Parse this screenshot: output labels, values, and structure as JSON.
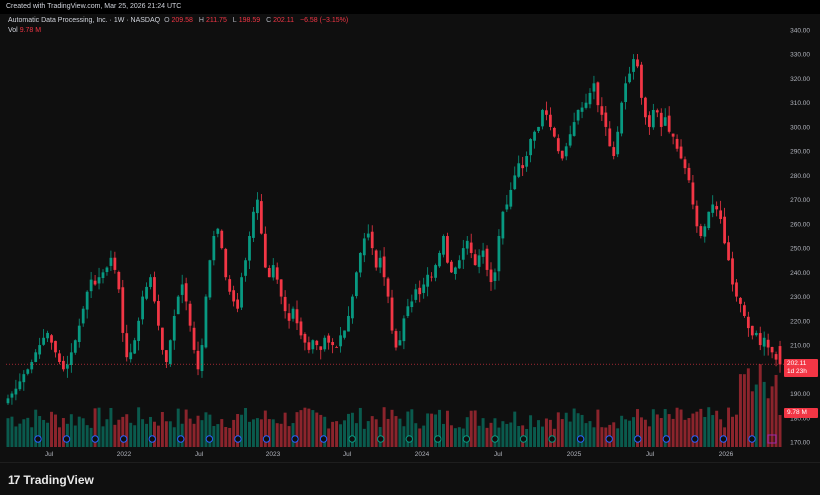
{
  "header": {
    "created": "Created with TradingView.com, Mar 25, 2026 21:24 UTC"
  },
  "legend": {
    "symbol": "Automatic Data Processing, Inc. · 1W · NASDAQ",
    "o_label": "O",
    "o_value": "209.58",
    "h_label": "H",
    "h_value": "211.75",
    "l_label": "L",
    "l_value": "198.59",
    "c_label": "C",
    "c_value": "202.11",
    "change": "−6.58 (−3.15%)",
    "vol_label": "Vol",
    "vol_value": "9.78 M"
  },
  "price_badge": {
    "price": "202.11",
    "countdown": "1d 23h"
  },
  "volume_badge": "9.78 M",
  "footer": {
    "brand": "TradingView"
  },
  "colors": {
    "up": "#089981",
    "down": "#f23645",
    "background": "#0f0f0f",
    "event_marker": "#2962ff",
    "earnings_marker": "#9c27b0"
  },
  "chart_data": {
    "type": "candlestick",
    "symbol": "ADP",
    "interval": "1W",
    "ylim": [
      170,
      340
    ],
    "y_ticks": [
      340,
      330,
      320,
      310,
      300,
      290,
      280,
      270,
      260,
      250,
      240,
      230,
      220,
      210,
      200,
      190,
      180,
      170
    ],
    "x_tick_labels": [
      "Jul",
      "2022",
      "Jul",
      "2023",
      "Jul",
      "2024",
      "Jul",
      "2025",
      "Jul",
      "2026"
    ],
    "grid": false,
    "approx_weekly_close": [
      {
        "period": "2021 H1",
        "values": [
          188,
          190,
          192,
          195,
          198,
          200,
          203,
          207,
          210,
          213,
          215,
          211,
          207,
          203,
          200
        ]
      },
      {
        "period": "2021 H2",
        "values": [
          202,
          207,
          212,
          218,
          225,
          232,
          237,
          235,
          238,
          240,
          242,
          246,
          241,
          233
        ]
      },
      {
        "period": "2022",
        "values": [
          215,
          205,
          207,
          212,
          220,
          230,
          234,
          238,
          228,
          218,
          208,
          203,
          212,
          222,
          230,
          235,
          228,
          218,
          208,
          200,
          210,
          230,
          245,
          255,
          258,
          250,
          238,
          232,
          228,
          225,
          238,
          245,
          255,
          265,
          270,
          256,
          242
        ]
      },
      {
        "period": "2023",
        "values": [
          238,
          243,
          237,
          230,
          224,
          220,
          225,
          219,
          214,
          211,
          208,
          212,
          210,
          208,
          213,
          211,
          210,
          209,
          214,
          216,
          222,
          230,
          240,
          248,
          254,
          256,
          250,
          242,
          246,
          238,
          230,
          216,
          209,
          212,
          221,
          226,
          228,
          233,
          231,
          235,
          239
        ]
      },
      {
        "period": "2024",
        "values": [
          238,
          243,
          248,
          255,
          244,
          240,
          242,
          245,
          250,
          253,
          248,
          243,
          247,
          249,
          241,
          236,
          240,
          255,
          265,
          268,
          274,
          280,
          285,
          283,
          288,
          295,
          298,
          300,
          307,
          305,
          300,
          296,
          290,
          287
        ]
      },
      {
        "period": "2025",
        "values": [
          292,
          297,
          302,
          307,
          308,
          310,
          314,
          318,
          309,
          305,
          300,
          292,
          288,
          298,
          310,
          318,
          322,
          328,
          325,
          312,
          304,
          300,
          307,
          306,
          300,
          304,
          298,
          296,
          291,
          287,
          283,
          278,
          268,
          259,
          255,
          259,
          265,
          268,
          266,
          262,
          252,
          245,
          235,
          230,
          227,
          222,
          217,
          214,
          215,
          210
        ]
      },
      {
        "period": "2026",
        "values": [
          213,
          209,
          207,
          204,
          202
        ]
      }
    ],
    "last": {
      "open": 209.58,
      "high": 211.75,
      "low": 198.59,
      "close": 202.11,
      "volume": "9.78 M"
    },
    "event_markers_count": 26
  }
}
